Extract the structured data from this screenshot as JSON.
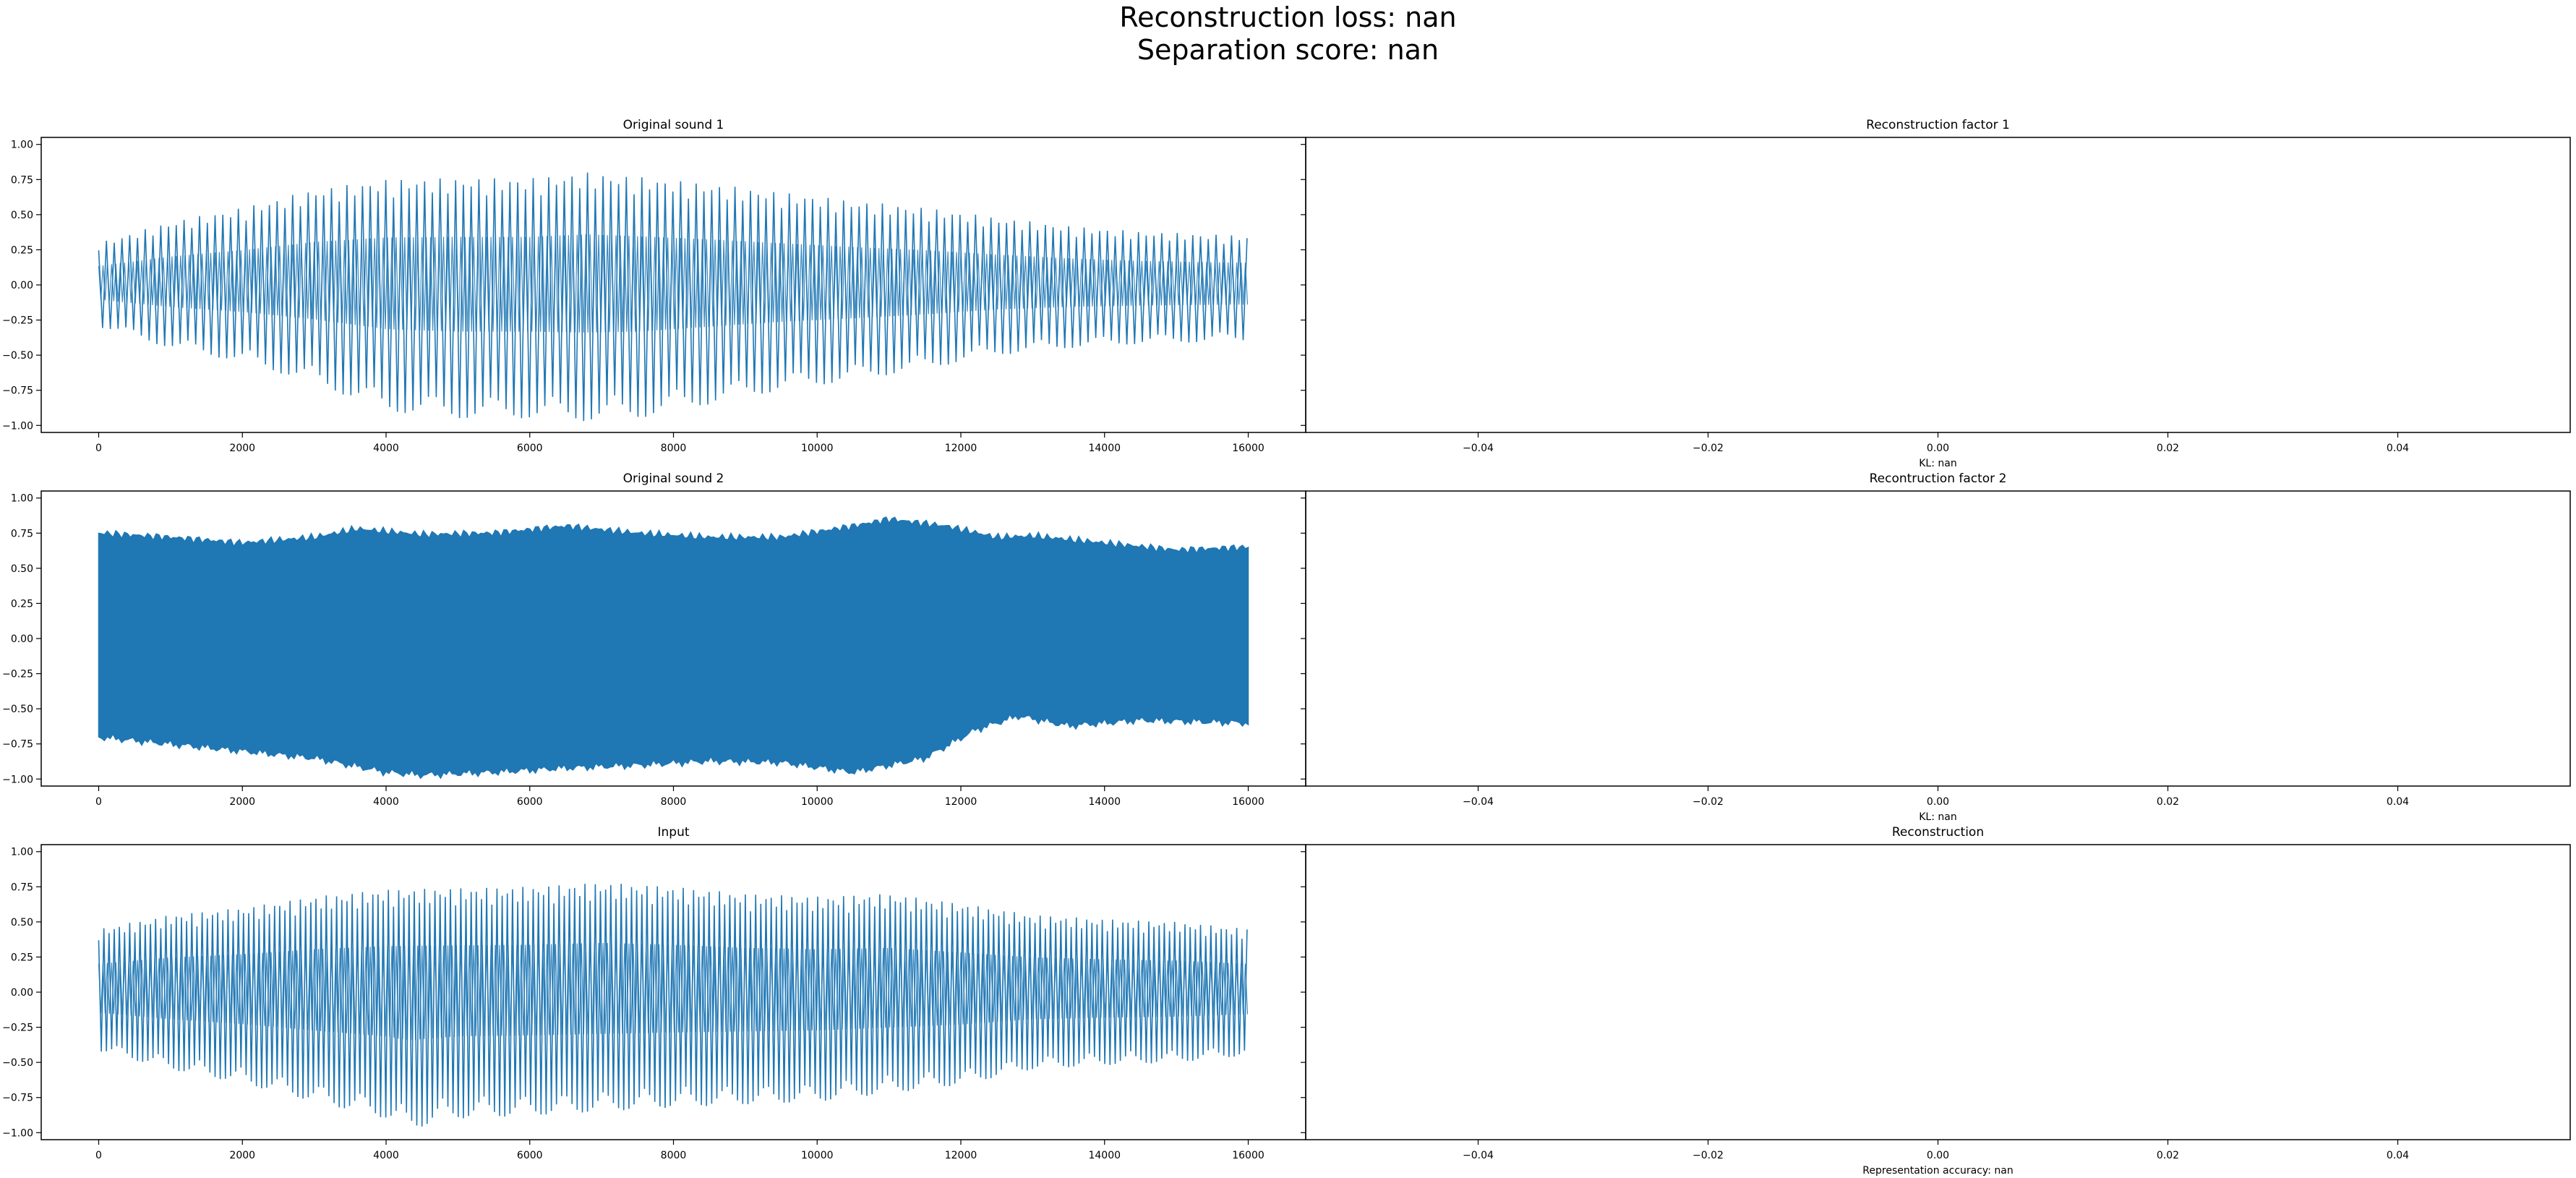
{
  "figure": {
    "suptitle_line1": "Reconstruction loss: nan",
    "suptitle_line2": "Separation score: nan"
  },
  "chart_data": [
    {
      "type": "line",
      "title": "Original sound 1",
      "xlabel": "",
      "ylabel": "",
      "xlim": [
        -800,
        16800
      ],
      "ylim": [
        -1.05,
        1.05
      ],
      "xticks": [
        0,
        2000,
        4000,
        6000,
        8000,
        10000,
        12000,
        14000,
        16000
      ],
      "yticks": [
        -1.0,
        -0.75,
        -0.5,
        -0.25,
        0.0,
        0.25,
        0.5,
        0.75,
        1.0
      ],
      "line_color": "#1f77b4",
      "series": [
        {
          "signal": "oscillating waveform, period ~110 samples",
          "x_range": [
            0,
            16000
          ],
          "upper_envelope": [
            [
              0,
              0.3
            ],
            [
              1000,
              0.45
            ],
            [
              2000,
              0.55
            ],
            [
              3000,
              0.68
            ],
            [
              4000,
              0.75
            ],
            [
              5000,
              0.76
            ],
            [
              6000,
              0.76
            ],
            [
              6800,
              0.8
            ],
            [
              7500,
              0.77
            ],
            [
              8500,
              0.72
            ],
            [
              9500,
              0.66
            ],
            [
              10500,
              0.6
            ],
            [
              11500,
              0.55
            ],
            [
              12500,
              0.48
            ],
            [
              13500,
              0.42
            ],
            [
              14500,
              0.38
            ],
            [
              16000,
              0.35
            ]
          ],
          "lower_envelope": [
            [
              0,
              -0.3
            ],
            [
              1000,
              -0.45
            ],
            [
              2000,
              -0.55
            ],
            [
              3000,
              -0.7
            ],
            [
              4000,
              -0.9
            ],
            [
              5000,
              -0.95
            ],
            [
              6000,
              -0.95
            ],
            [
              6800,
              -0.97
            ],
            [
              7500,
              -0.95
            ],
            [
              8500,
              -0.85
            ],
            [
              9500,
              -0.75
            ],
            [
              10500,
              -0.68
            ],
            [
              11500,
              -0.6
            ],
            [
              12500,
              -0.5
            ],
            [
              13500,
              -0.45
            ],
            [
              14500,
              -0.42
            ],
            [
              16000,
              -0.4
            ]
          ]
        }
      ]
    },
    {
      "type": "line",
      "title": "Reconstruction factor 1",
      "xlabel": "KL: nan",
      "ylabel": "",
      "xlim": [
        -0.055,
        0.055
      ],
      "ylim": [
        -1.05,
        1.05
      ],
      "xticks": [
        -0.04,
        -0.02,
        0.0,
        0.02,
        0.04
      ],
      "series": []
    },
    {
      "type": "line",
      "title": "Original sound 2",
      "xlabel": "",
      "ylabel": "",
      "xlim": [
        -800,
        16800
      ],
      "ylim": [
        -1.05,
        1.05
      ],
      "xticks": [
        0,
        2000,
        4000,
        6000,
        8000,
        10000,
        12000,
        14000,
        16000
      ],
      "yticks": [
        -1.0,
        -0.75,
        -0.5,
        -0.25,
        0.0,
        0.25,
        0.5,
        0.75,
        1.0
      ],
      "line_color": "#1f77b4",
      "series": [
        {
          "signal": "dense oscillating waveform (filled envelope)",
          "x_range": [
            0,
            16000
          ],
          "upper_envelope": [
            [
              0,
              0.75
            ],
            [
              1000,
              0.72
            ],
            [
              2000,
              0.68
            ],
            [
              3000,
              0.72
            ],
            [
              3600,
              0.78
            ],
            [
              4500,
              0.74
            ],
            [
              5500,
              0.75
            ],
            [
              6500,
              0.8
            ],
            [
              7500,
              0.75
            ],
            [
              8500,
              0.72
            ],
            [
              9500,
              0.72
            ],
            [
              10500,
              0.8
            ],
            [
              11000,
              0.85
            ],
            [
              11800,
              0.8
            ],
            [
              12500,
              0.72
            ],
            [
              13000,
              0.73
            ],
            [
              14000,
              0.68
            ],
            [
              15000,
              0.63
            ],
            [
              16000,
              0.65
            ]
          ],
          "lower_envelope": [
            [
              0,
              -0.7
            ],
            [
              1000,
              -0.75
            ],
            [
              2000,
              -0.8
            ],
            [
              3000,
              -0.85
            ],
            [
              4000,
              -0.95
            ],
            [
              4500,
              -0.97
            ],
            [
              5500,
              -0.95
            ],
            [
              6500,
              -0.92
            ],
            [
              7500,
              -0.9
            ],
            [
              8500,
              -0.87
            ],
            [
              9500,
              -0.88
            ],
            [
              10500,
              -0.95
            ],
            [
              11500,
              -0.85
            ],
            [
              12200,
              -0.65
            ],
            [
              12800,
              -0.55
            ],
            [
              13500,
              -0.62
            ],
            [
              14500,
              -0.58
            ],
            [
              16000,
              -0.6
            ]
          ]
        }
      ]
    },
    {
      "type": "line",
      "title": "Recontruction factor 2",
      "xlabel": "KL: nan",
      "ylabel": "",
      "xlim": [
        -0.055,
        0.055
      ],
      "ylim": [
        -1.05,
        1.05
      ],
      "xticks": [
        -0.04,
        -0.02,
        0.0,
        0.02,
        0.04
      ],
      "series": []
    },
    {
      "type": "line",
      "title": "Input",
      "xlabel": "",
      "ylabel": "",
      "xlim": [
        -800,
        16800
      ],
      "ylim": [
        -1.05,
        1.05
      ],
      "xticks": [
        0,
        2000,
        4000,
        6000,
        8000,
        10000,
        12000,
        14000,
        16000
      ],
      "yticks": [
        -1.0,
        -0.75,
        -0.5,
        -0.25,
        0.0,
        0.25,
        0.5,
        0.75,
        1.0
      ],
      "line_color": "#1f77b4",
      "series": [
        {
          "signal": "mixture waveform, oscillating",
          "x_range": [
            0,
            16000
          ],
          "upper_envelope": [
            [
              0,
              0.45
            ],
            [
              1000,
              0.55
            ],
            [
              2000,
              0.6
            ],
            [
              3000,
              0.68
            ],
            [
              4000,
              0.73
            ],
            [
              5000,
              0.74
            ],
            [
              6000,
              0.75
            ],
            [
              7000,
              0.78
            ],
            [
              8000,
              0.75
            ],
            [
              9000,
              0.7
            ],
            [
              10000,
              0.68
            ],
            [
              11000,
              0.7
            ],
            [
              12000,
              0.63
            ],
            [
              13000,
              0.55
            ],
            [
              14000,
              0.52
            ],
            [
              15000,
              0.5
            ],
            [
              16000,
              0.45
            ]
          ],
          "lower_envelope": [
            [
              0,
              -0.42
            ],
            [
              1000,
              -0.55
            ],
            [
              2000,
              -0.65
            ],
            [
              3000,
              -0.78
            ],
            [
              4000,
              -0.9
            ],
            [
              4300,
              -0.98
            ],
            [
              5000,
              -0.9
            ],
            [
              6000,
              -0.88
            ],
            [
              7000,
              -0.85
            ],
            [
              8000,
              -0.82
            ],
            [
              9000,
              -0.8
            ],
            [
              10000,
              -0.78
            ],
            [
              11000,
              -0.72
            ],
            [
              12000,
              -0.66
            ],
            [
              13000,
              -0.55
            ],
            [
              14000,
              -0.52
            ],
            [
              15000,
              -0.5
            ],
            [
              16000,
              -0.45
            ]
          ]
        }
      ]
    },
    {
      "type": "line",
      "title": "Reconstruction",
      "xlabel": "Representation accuracy: nan",
      "ylabel": "",
      "xlim": [
        -0.055,
        0.055
      ],
      "ylim": [
        -1.05,
        1.05
      ],
      "xticks": [
        -0.04,
        -0.02,
        0.0,
        0.02,
        0.04
      ],
      "series": []
    }
  ]
}
